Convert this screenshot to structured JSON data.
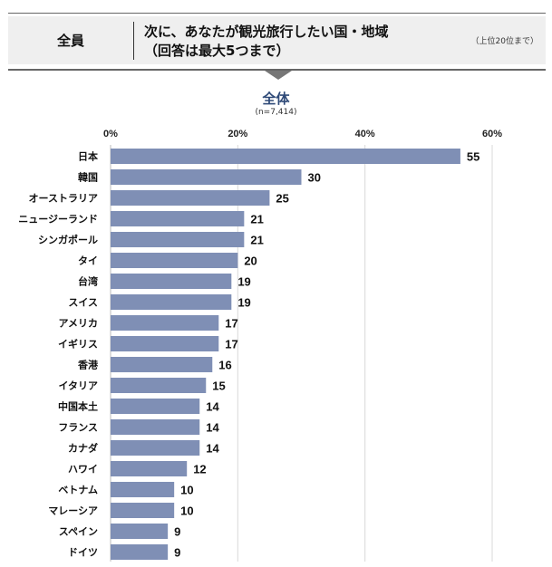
{
  "header": {
    "segment": "全員",
    "question_line1": "次に、あなたが観光旅行したい国・地域",
    "question_line2": "（回答は最大5つまで）",
    "note": "（上位20位まで）"
  },
  "chart_data": {
    "type": "bar",
    "orientation": "horizontal",
    "title": "全体",
    "subtitle": "(n=7,414)",
    "xlim": [
      0,
      60
    ],
    "xticks": [
      "0%",
      "20%",
      "40%",
      "60%"
    ],
    "xtick_values": [
      0,
      20,
      40,
      60
    ],
    "grid": true,
    "bar_color": "#7f8fb5",
    "categories": [
      "日本",
      "韓国",
      "オーストラリア",
      "ニュージーランド",
      "シンガポール",
      "タイ",
      "台湾",
      "スイス",
      "アメリカ",
      "イギリス",
      "香港",
      "イタリア",
      "中国本土",
      "フランス",
      "カナダ",
      "ハワイ",
      "ベトナム",
      "マレーシア",
      "スペイン",
      "ドイツ"
    ],
    "values": [
      55,
      30,
      25,
      21,
      21,
      20,
      19,
      19,
      17,
      17,
      16,
      15,
      14,
      14,
      14,
      12,
      10,
      10,
      9,
      9
    ],
    "value_precise": [
      55.2,
      30.1,
      25.3,
      21.2,
      20.9,
      20.3,
      19.1,
      18.7,
      17.1,
      16.6,
      16.1,
      14.7,
      14.3,
      14.1,
      13.6,
      12.1,
      10.2,
      9.7,
      9.4,
      8.8
    ]
  }
}
